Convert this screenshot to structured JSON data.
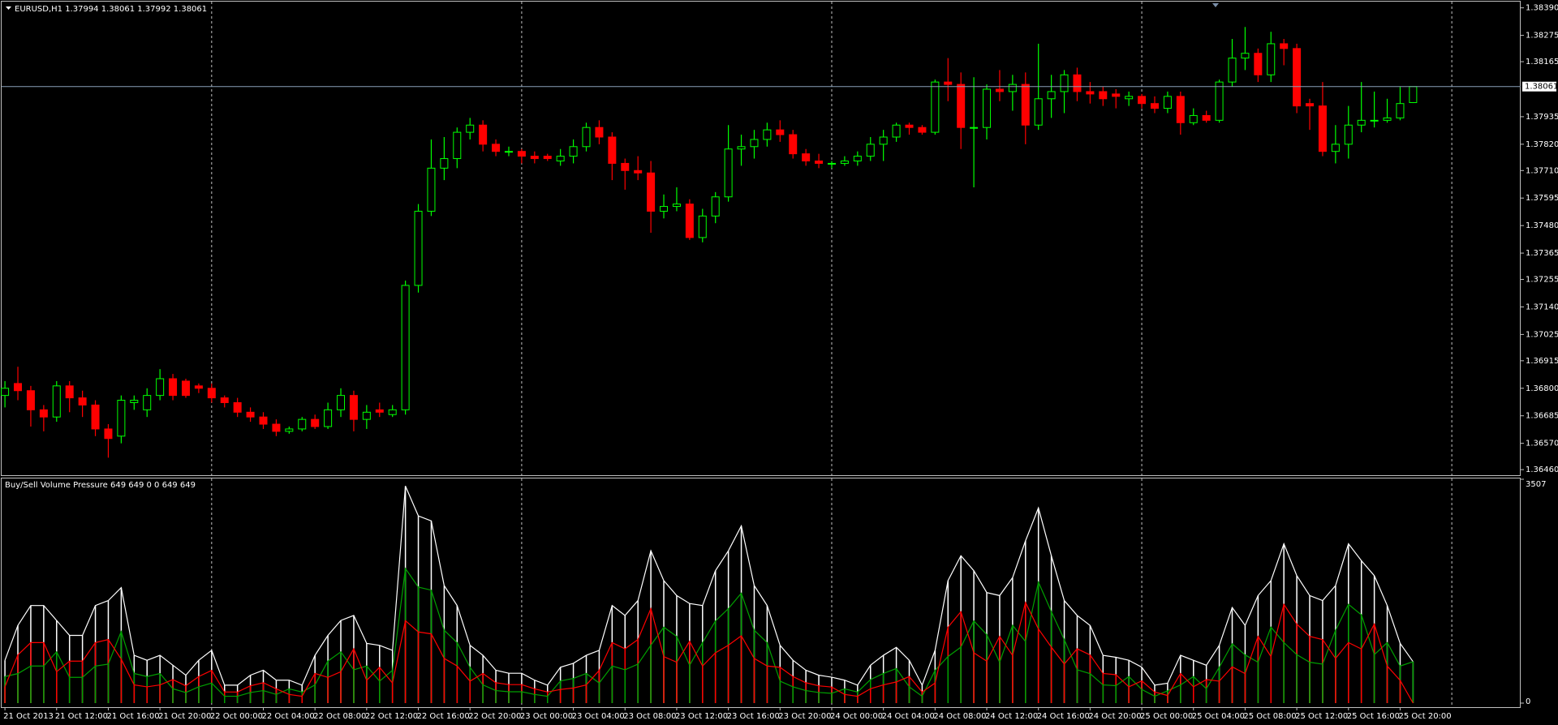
{
  "chart_data": [
    {
      "type": "candlestick",
      "title": "EURUSD,H1  1.37994 1.38061 1.37992 1.38061",
      "up_color": "#00ff00",
      "down_color": "#ff0000",
      "ylim": [
        1.3644,
        1.38416
      ],
      "yticks": [
        {
          "value": 1.3839,
          "label": "1.38390"
        },
        1.38275,
        1.38165,
        1.37935,
        {
          "value": 1.3782,
          "label": "1.37820"
        },
        {
          "value": 1.3771,
          "label": "1.37710"
        },
        1.37595,
        {
          "value": 1.3748,
          "label": "1.37480"
        },
        1.37365,
        1.37255,
        {
          "value": 1.3714,
          "label": "1.37140"
        },
        1.37025,
        1.36915,
        {
          "value": 1.368,
          "label": "1.36800"
        },
        1.36685,
        {
          "value": 1.3657,
          "label": "1.36570"
        },
        {
          "value": 1.3646,
          "label": "1.36460"
        }
      ],
      "current_price": 1.38061,
      "period_separators": true,
      "categories": [
        "21 Oct 2013",
        null,
        null,
        null,
        "21 Oct 12:00",
        null,
        null,
        null,
        "21 Oct 16:00",
        null,
        null,
        null,
        "21 Oct 20:00",
        null,
        null,
        null,
        "22 Oct 00:00",
        null,
        null,
        null,
        "22 Oct 04:00",
        null,
        null,
        null,
        "22 Oct 08:00",
        null,
        null,
        null,
        "22 Oct 12:00",
        null,
        null,
        null,
        "22 Oct 16:00",
        null,
        null,
        null,
        "22 Oct 20:00",
        null,
        null,
        null,
        "23 Oct 00:00",
        null,
        null,
        null,
        "23 Oct 04:00",
        null,
        null,
        null,
        "23 Oct 08:00",
        null,
        null,
        null,
        "23 Oct 12:00",
        null,
        null,
        null,
        "23 Oct 16:00",
        null,
        null,
        null,
        "23 Oct 20:00",
        null,
        null,
        null,
        "24 Oct 00:00",
        null,
        null,
        null,
        "24 Oct 04:00",
        null,
        null,
        null,
        "24 Oct 08:00",
        null,
        null,
        null,
        "24 Oct 12:00",
        null,
        null,
        null,
        "24 Oct 16:00",
        null,
        null,
        null,
        "24 Oct 20:00",
        null,
        null,
        null,
        "25 Oct 00:00",
        null,
        null,
        null,
        "25 Oct 04:00",
        null,
        null,
        null,
        "25 Oct 08:00",
        null,
        null,
        null,
        "25 Oct 12:00",
        null,
        null,
        null,
        "25 Oct 16:00",
        null,
        null,
        null,
        "25 Oct 20:00",
        null
      ],
      "open": [
        1.3677,
        1.3682,
        1.3679,
        1.3671,
        1.3668,
        1.3681,
        1.3676,
        1.3673,
        1.3663,
        1.366,
        1.3674,
        1.3671,
        1.3677,
        1.3684,
        1.3683,
        1.3681,
        1.368,
        1.3676,
        1.3674,
        1.367,
        1.3668,
        1.3665,
        1.3662,
        1.3663,
        1.3667,
        1.3664,
        1.3671,
        1.3677,
        1.3667,
        1.3671,
        1.3669,
        1.3671,
        1.3723,
        1.3754,
        1.3772,
        1.3776,
        1.3787,
        1.379,
        1.3782,
        1.3779,
        1.3779,
        1.3777,
        1.3777,
        1.3775,
        1.3777,
        1.3781,
        1.3789,
        1.3785,
        1.3774,
        1.3771,
        1.377,
        1.3754,
        1.3756,
        1.3757,
        1.3743,
        1.3752,
        1.376,
        1.378,
        1.3781,
        1.3784,
        1.3788,
        1.3786,
        1.3778,
        1.3775,
        1.3774,
        1.3774,
        1.3775,
        1.3777,
        1.3782,
        1.3785,
        1.379,
        1.3789,
        1.3787,
        1.3808,
        1.3807,
        1.3789,
        1.3789,
        1.3805,
        1.3804,
        1.3807,
        1.379,
        1.3801,
        1.3804,
        1.3811,
        1.3804,
        1.3804,
        1.3803,
        1.3801,
        1.3802,
        1.3799,
        1.3797,
        1.3802,
        1.3791,
        1.3794,
        1.3792,
        1.3808,
        1.3818,
        1.382,
        1.3811,
        1.3824,
        1.3822,
        1.3799,
        1.3798,
        1.3779,
        1.3782,
        1.379,
        1.3792,
        1.3792,
        1.3793,
        1.37994
      ],
      "high": [
        1.3683,
        1.3689,
        1.3681,
        1.3673,
        1.3683,
        1.3683,
        1.3679,
        1.3675,
        1.3665,
        1.3677,
        1.3677,
        1.368,
        1.3688,
        1.3686,
        1.3684,
        1.3682,
        1.3682,
        1.3677,
        1.3676,
        1.3672,
        1.367,
        1.3667,
        1.3664,
        1.3668,
        1.3669,
        1.3674,
        1.368,
        1.3679,
        1.3673,
        1.3674,
        1.3673,
        1.3725,
        1.3757,
        1.3784,
        1.3785,
        1.3789,
        1.3793,
        1.3792,
        1.3784,
        1.3781,
        1.378,
        1.3779,
        1.3778,
        1.378,
        1.3784,
        1.3791,
        1.3792,
        1.3787,
        1.3776,
        1.3777,
        1.3775,
        1.3761,
        1.3764,
        1.3759,
        1.3755,
        1.3762,
        1.379,
        1.3786,
        1.3788,
        1.3791,
        1.3792,
        1.3788,
        1.378,
        1.3778,
        1.3775,
        1.3777,
        1.3779,
        1.3785,
        1.3788,
        1.3791,
        1.3791,
        1.379,
        1.3809,
        1.3818,
        1.3812,
        1.381,
        1.3807,
        1.3813,
        1.3811,
        1.3812,
        1.3824,
        1.3811,
        1.3813,
        1.3814,
        1.3808,
        1.3806,
        1.3805,
        1.3804,
        1.3803,
        1.3802,
        1.3804,
        1.3804,
        1.3797,
        1.3796,
        1.3809,
        1.3826,
        1.3831,
        1.3822,
        1.3829,
        1.3826,
        1.3824,
        1.3801,
        1.3808,
        1.379,
        1.3798,
        1.3808,
        1.3804,
        1.3801,
        1.3806,
        1.38061
      ],
      "low": [
        1.3672,
        1.3675,
        1.3664,
        1.3662,
        1.3666,
        1.367,
        1.3668,
        1.366,
        1.3651,
        1.3657,
        1.3671,
        1.3668,
        1.3675,
        1.3675,
        1.3676,
        1.3678,
        1.3674,
        1.3672,
        1.3668,
        1.3666,
        1.3663,
        1.366,
        1.3661,
        1.3662,
        1.3663,
        1.3663,
        1.3668,
        1.3662,
        1.3663,
        1.3668,
        1.3668,
        1.3669,
        1.372,
        1.3752,
        1.3767,
        1.3772,
        1.3784,
        1.3779,
        1.3777,
        1.3777,
        1.3774,
        1.3774,
        1.3775,
        1.3773,
        1.3774,
        1.3779,
        1.3782,
        1.3767,
        1.3763,
        1.3767,
        1.3745,
        1.3751,
        1.3754,
        1.3742,
        1.3741,
        1.3749,
        1.3758,
        1.3773,
        1.3776,
        1.3781,
        1.3783,
        1.3776,
        1.3773,
        1.3772,
        1.3772,
        1.3773,
        1.3773,
        1.3775,
        1.3775,
        1.3783,
        1.3786,
        1.3786,
        1.3786,
        1.38,
        1.378,
        1.3764,
        1.3784,
        1.38,
        1.3796,
        1.3782,
        1.3788,
        1.3793,
        1.3795,
        1.38,
        1.3799,
        1.3798,
        1.3797,
        1.3798,
        1.3797,
        1.3795,
        1.3795,
        1.3786,
        1.379,
        1.3791,
        1.3791,
        1.3806,
        1.3813,
        1.3808,
        1.3808,
        1.3815,
        1.3795,
        1.3788,
        1.3777,
        1.3774,
        1.3776,
        1.3787,
        1.3789,
        1.3791,
        1.3792,
        1.37992
      ],
      "close": [
        1.368,
        1.3679,
        1.3671,
        1.3668,
        1.3681,
        1.3676,
        1.3673,
        1.3663,
        1.3659,
        1.3675,
        1.3675,
        1.3677,
        1.3684,
        1.3677,
        1.3677,
        1.368,
        1.3676,
        1.3674,
        1.367,
        1.3668,
        1.3665,
        1.3662,
        1.3663,
        1.3667,
        1.3664,
        1.3671,
        1.3677,
        1.3667,
        1.367,
        1.367,
        1.3671,
        1.3723,
        1.3754,
        1.3772,
        1.3776,
        1.3787,
        1.379,
        1.3782,
        1.3779,
        1.3779,
        1.3777,
        1.3776,
        1.3776,
        1.3777,
        1.3781,
        1.3789,
        1.3785,
        1.3774,
        1.3771,
        1.377,
        1.3754,
        1.3756,
        1.3757,
        1.3743,
        1.3752,
        1.376,
        1.378,
        1.3781,
        1.3784,
        1.3788,
        1.3786,
        1.3778,
        1.3775,
        1.3774,
        1.3774,
        1.3775,
        1.3777,
        1.3782,
        1.3785,
        1.379,
        1.3789,
        1.3787,
        1.3808,
        1.3807,
        1.3789,
        1.3789,
        1.3805,
        1.3804,
        1.3807,
        1.379,
        1.3801,
        1.3804,
        1.3811,
        1.3804,
        1.3803,
        1.3801,
        1.3802,
        1.3802,
        1.3799,
        1.3797,
        1.3802,
        1.3791,
        1.3794,
        1.3792,
        1.3808,
        1.3818,
        1.382,
        1.3811,
        1.3824,
        1.3822,
        1.3798,
        1.3798,
        1.3779,
        1.3782,
        1.379,
        1.3792,
        1.3792,
        1.3793,
        1.3799,
        1.38061
      ]
    },
    {
      "type": "volume-pressure",
      "title": "Buy/Sell Volume Pressure 649 649 0 0 649 649",
      "ylim": [
        0,
        3507
      ],
      "yticks": [
        3507,
        0
      ],
      "series": [
        {
          "color": "#ffffff",
          "values": [
            671,
            1217,
            1529,
            1529,
            1295,
            1061,
            1061,
            1529,
            1607,
            1810,
            749,
            671,
            749,
            593,
            437,
            671,
            827,
            281,
            281,
            437,
            515,
            359,
            359,
            281,
            749,
            1061,
            1295,
            1373,
            936,
            905,
            827,
            3401,
            2933,
            2855,
            1841,
            1529,
            905,
            749,
            515,
            468,
            468,
            359,
            281,
            562,
            624,
            749,
            827,
            1529,
            1373,
            1607,
            2387,
            1919,
            1685,
            1560,
            1529,
            2075,
            2387,
            2777,
            1841,
            1529,
            905,
            671,
            515,
            437,
            406,
            359,
            281,
            593,
            749,
            874,
            671,
            281,
            827,
            1919,
            2309,
            2075,
            1732,
            1685,
            1966,
            2543,
            3058,
            2309,
            1607,
            1373,
            1217,
            749,
            718,
            671,
            562,
            281,
            312,
            749,
            671,
            593,
            905,
            1498,
            1217,
            1685,
            1919,
            2496,
            1997,
            1685,
            1607,
            1841,
            2496,
            2231,
            1997,
            1529,
            936,
            649
          ]
        },
        {
          "color": "#00a000",
          "values": [
            416,
            462,
            581,
            581,
            803,
            403,
            403,
            581,
            611,
            1122,
            464,
            416,
            464,
            225,
            166,
            255,
            314,
            107,
            107,
            166,
            196,
            136,
            223,
            174,
            285,
            658,
            803,
            522,
            580,
            344,
            513,
            2109,
            1818,
            1770,
            1141,
            948,
            561,
            285,
            196,
            178,
            178,
            136,
            107,
            348,
            387,
            464,
            314,
            581,
            522,
            611,
            907,
            1190,
            1045,
            593,
            948,
            1287,
            1480,
            1722,
            1141,
            948,
            344,
            255,
            196,
            166,
            154,
            223,
            174,
            368,
            464,
            542,
            255,
            107,
            513,
            729,
            877,
            1287,
            1074,
            640,
            1219,
            966,
            1896,
            1432,
            996,
            522,
            462,
            285,
            273,
            416,
            214,
            107,
            193,
            285,
            416,
            225,
            561,
            929,
            755,
            640,
            1190,
            948,
            759,
            640,
            611,
            1141,
            1548,
            1383,
            759,
            948,
            580,
            649
          ]
        },
        {
          "color": "#ff0000",
          "values": [
            255,
            755,
            948,
            948,
            492,
            658,
            658,
            948,
            996,
            688,
            285,
            255,
            285,
            368,
            271,
            416,
            513,
            174,
            174,
            271,
            319,
            223,
            136,
            107,
            464,
            403,
            492,
            851,
            356,
            561,
            314,
            1292,
            1115,
            1085,
            700,
            581,
            344,
            464,
            319,
            290,
            290,
            223,
            174,
            214,
            237,
            285,
            513,
            948,
            851,
            996,
            1480,
            729,
            640,
            967,
            581,
            788,
            907,
            1055,
            700,
            581,
            561,
            416,
            319,
            271,
            252,
            136,
            107,
            225,
            285,
            332,
            416,
            174,
            314,
            1190,
            1432,
            788,
            658,
            1045,
            747,
            1577,
            1162,
            877,
            611,
            851,
            755,
            464,
            445,
            255,
            348,
            174,
            119,
            464,
            255,
            368,
            344,
            569,
            462,
            1045,
            729,
            1548,
            1238,
            1045,
            996,
            700,
            948,
            848,
            1238,
            581,
            356,
            0
          ]
        }
      ]
    }
  ]
}
